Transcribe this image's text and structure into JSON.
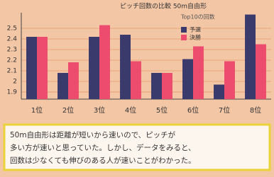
{
  "chart_data": {
    "type": "bar",
    "title": "ピッチ回数の比較 50m自由形",
    "annotation": "Top10の回数",
    "categories": [
      "1位",
      "2位",
      "3位",
      "4位",
      "5位",
      "6位",
      "7位",
      "8位"
    ],
    "series": [
      {
        "name": "予選",
        "color": "#3b3a6c",
        "values": [
          2.42,
          2.08,
          2.42,
          2.44,
          2.08,
          2.21,
          1.97,
          2.63
        ]
      },
      {
        "name": "決勝",
        "color": "#ee4c6e",
        "values": [
          2.42,
          2.18,
          2.53,
          2.19,
          2.08,
          2.33,
          2.19,
          2.35
        ]
      }
    ],
    "ylim": [
      1.833,
      2.647
    ],
    "yticks": [
      1.9,
      2,
      2.1,
      2.2,
      2.3,
      2.4,
      2.5
    ],
    "grid": true,
    "note": [
      "50m自由形は距離が短いから速いので、ピッチが",
      "多い方が速いと思っていた。しかし、データをみると、",
      "回数は少なくても伸びのある人が速いことがわかった。"
    ]
  }
}
